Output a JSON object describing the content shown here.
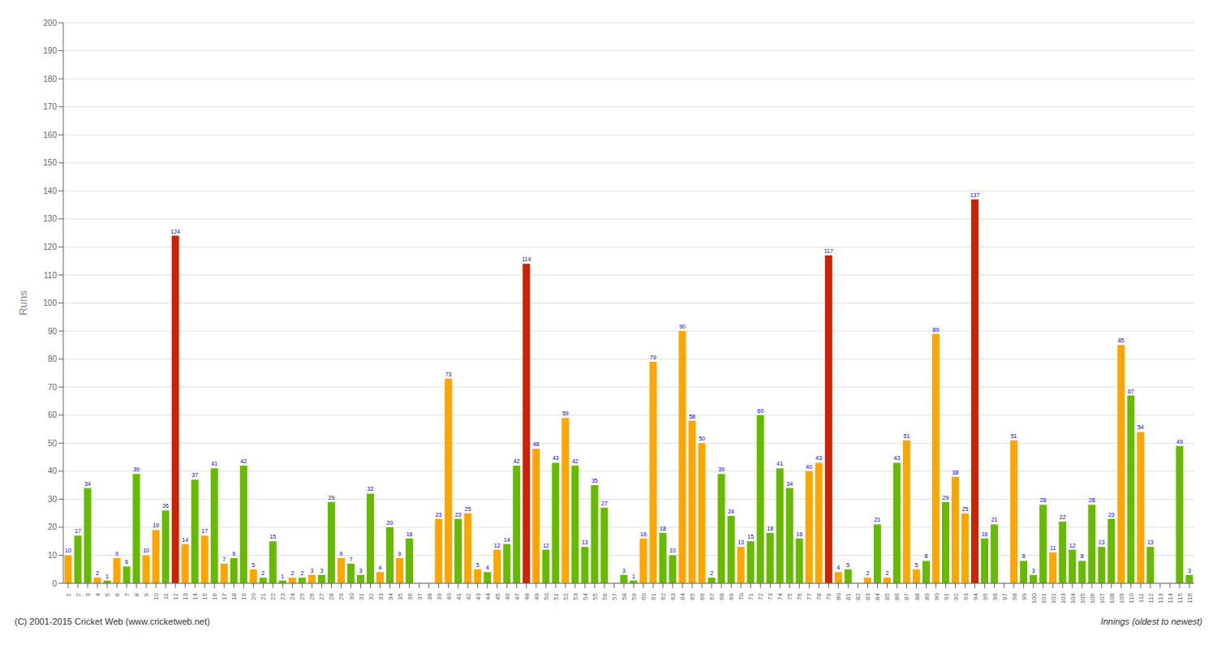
{
  "chart_data": {
    "type": "bar",
    "xlabel": "Innings (oldest to newest)",
    "ylabel": "Runs",
    "annotations": [
      "(C) 2001-2015 Cricket Web (www.cricketweb.net)"
    ],
    "categories": [
      "1",
      "2",
      "3",
      "4",
      "5",
      "6",
      "7",
      "8",
      "9",
      "10",
      "11",
      "12",
      "13",
      "14",
      "15",
      "16",
      "17",
      "18",
      "19",
      "20",
      "21",
      "22",
      "23",
      "24",
      "25",
      "26",
      "27",
      "28",
      "29",
      "30",
      "31",
      "32",
      "33",
      "34",
      "35",
      "36",
      "37",
      "38",
      "39",
      "40",
      "41",
      "42",
      "43",
      "44",
      "45",
      "46",
      "47",
      "48",
      "49",
      "50",
      "51",
      "52",
      "53",
      "54",
      "55",
      "56",
      "57",
      "58",
      "59",
      "60",
      "61",
      "62",
      "63",
      "64",
      "65",
      "66",
      "67",
      "68",
      "69",
      "70",
      "71",
      "72",
      "73",
      "74",
      "75",
      "76",
      "77",
      "78",
      "79",
      "80",
      "81",
      "82",
      "83",
      "84",
      "85",
      "86",
      "87",
      "88",
      "89",
      "90",
      "91",
      "92",
      "93",
      "94",
      "95",
      "96",
      "97",
      "98",
      "99",
      "100",
      "101",
      "102",
      "103",
      "104",
      "105",
      "106",
      "107",
      "108",
      "109",
      "110",
      "111",
      "112",
      "113",
      "114",
      "115",
      "116"
    ],
    "values": [
      10,
      17,
      34,
      2,
      1,
      9,
      6,
      39,
      10,
      19,
      26,
      124,
      14,
      37,
      17,
      41,
      7,
      9,
      42,
      5,
      2,
      15,
      1,
      2,
      2,
      3,
      3,
      29,
      9,
      7,
      3,
      32,
      4,
      20,
      9,
      16,
      0,
      0,
      23,
      73,
      23,
      25,
      5,
      4,
      12,
      14,
      42,
      114,
      48,
      12,
      43,
      59,
      42,
      13,
      35,
      27,
      0,
      3,
      1,
      16,
      79,
      18,
      10,
      90,
      58,
      50,
      2,
      39,
      24,
      13,
      15,
      60,
      18,
      41,
      34,
      16,
      40,
      43,
      117,
      4,
      5,
      0,
      2,
      21,
      2,
      43,
      51,
      5,
      8,
      89,
      29,
      38,
      25,
      137,
      16,
      21,
      0,
      51,
      8,
      3,
      28,
      11,
      22,
      12,
      8,
      28,
      13,
      23,
      85,
      67,
      54,
      13,
      0,
      0,
      49,
      3
    ],
    "colors": [
      "#FFA500",
      "#66BB00",
      "#66BB00",
      "#FFA500",
      "#66BB00",
      "#FFA500",
      "#66BB00",
      "#66BB00",
      "#FFA500",
      "#FFA500",
      "#66BB00",
      "#CC2200",
      "#FFA500",
      "#66BB00",
      "#FFA500",
      "#66BB00",
      "#FFA500",
      "#66BB00",
      "#66BB00",
      "#FFA500",
      "#66BB00",
      "#66BB00",
      "#66BB00",
      "#FFA500",
      "#66BB00",
      "#FFA500",
      "#66BB00",
      "#66BB00",
      "#FFA500",
      "#66BB00",
      "#66BB00",
      "#66BB00",
      "#FFA500",
      "#66BB00",
      "#FFA500",
      "#66BB00",
      "#FFA500",
      "#66BB00",
      "#FFA500",
      "#FFA500",
      "#66BB00",
      "#FFA500",
      "#FFA500",
      "#66BB00",
      "#FFA500",
      "#66BB00",
      "#66BB00",
      "#CC2200",
      "#FFA500",
      "#66BB00",
      "#66BB00",
      "#FFA500",
      "#66BB00",
      "#66BB00",
      "#66BB00",
      "#66BB00",
      "#FFA500",
      "#66BB00",
      "#66BB00",
      "#FFA500",
      "#FFA500",
      "#66BB00",
      "#66BB00",
      "#FFA500",
      "#FFA500",
      "#FFA500",
      "#66BB00",
      "#66BB00",
      "#66BB00",
      "#FFA500",
      "#66BB00",
      "#66BB00",
      "#66BB00",
      "#66BB00",
      "#66BB00",
      "#66BB00",
      "#FFA500",
      "#FFA500",
      "#CC2200",
      "#FFA500",
      "#66BB00",
      "#66BB00",
      "#FFA500",
      "#66BB00",
      "#FFA500",
      "#66BB00",
      "#FFA500",
      "#FFA500",
      "#66BB00",
      "#FFA500",
      "#66BB00",
      "#FFA500",
      "#FFA500",
      "#CC2200",
      "#66BB00",
      "#66BB00",
      "#66BB00",
      "#FFA500",
      "#66BB00",
      "#66BB00",
      "#66BB00",
      "#FFA500",
      "#66BB00",
      "#66BB00",
      "#66BB00",
      "#66BB00",
      "#66BB00",
      "#66BB00",
      "#FFA500",
      "#66BB00",
      "#FFA500",
      "#66BB00",
      "#66BB00",
      "#66BB00",
      "#66BB00",
      "#66BB00"
    ],
    "ylim": [
      0,
      200
    ],
    "yticks": [
      0,
      10,
      20,
      30,
      40,
      50,
      60,
      70,
      80,
      90,
      100,
      110,
      120,
      130,
      140,
      150,
      160,
      170,
      180,
      190,
      200
    ],
    "grid": true,
    "data_labels": true
  }
}
